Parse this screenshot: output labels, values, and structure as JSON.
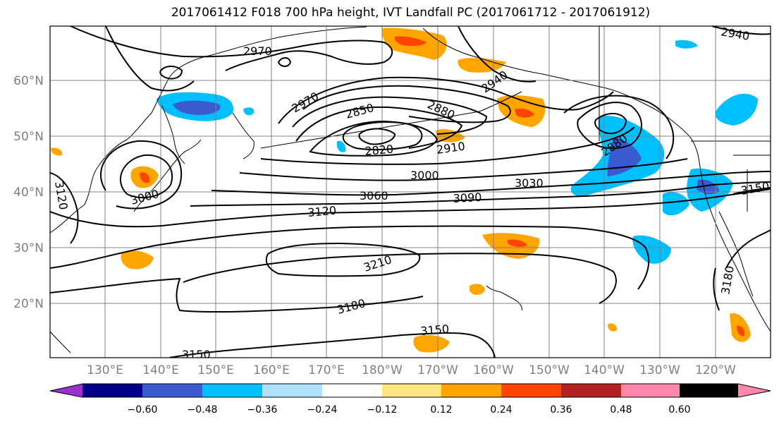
{
  "title": "2017061412 F018 700 hPa height, IVT Landfall PC (2017061712 - 2017061912)",
  "map": {
    "lat_labels": [
      "60°N",
      "50°N",
      "40°N",
      "30°N",
      "20°N"
    ],
    "lon_labels": [
      "130°E",
      "140°E",
      "150°E",
      "160°E",
      "170°E",
      "180°W",
      "170°W",
      "160°W",
      "150°W",
      "140°W",
      "130°W",
      "120°W"
    ],
    "contour_labels": [
      "2970",
      "2970",
      "2850",
      "2880",
      "2940",
      "2940",
      "2820",
      "2910",
      "2880",
      "3000",
      "3000",
      "3030",
      "3060",
      "3090",
      "3120",
      "3120",
      "3150",
      "3210",
      "3180",
      "3180",
      "3150",
      "3150"
    ]
  },
  "colorbar": {
    "tick_labels": [
      "−0.60",
      "−0.48",
      "−0.36",
      "−0.24",
      "−0.12",
      "0.12",
      "0.24",
      "0.36",
      "0.48",
      "0.60"
    ],
    "colors": [
      "#9932cc",
      "#00008b",
      "#3a5bd0",
      "#00bfff",
      "#b0e2ff",
      "#ffffff",
      "#ffe680",
      "#ffa500",
      "#ff4500",
      "#b22222",
      "#ff88aa"
    ]
  }
}
